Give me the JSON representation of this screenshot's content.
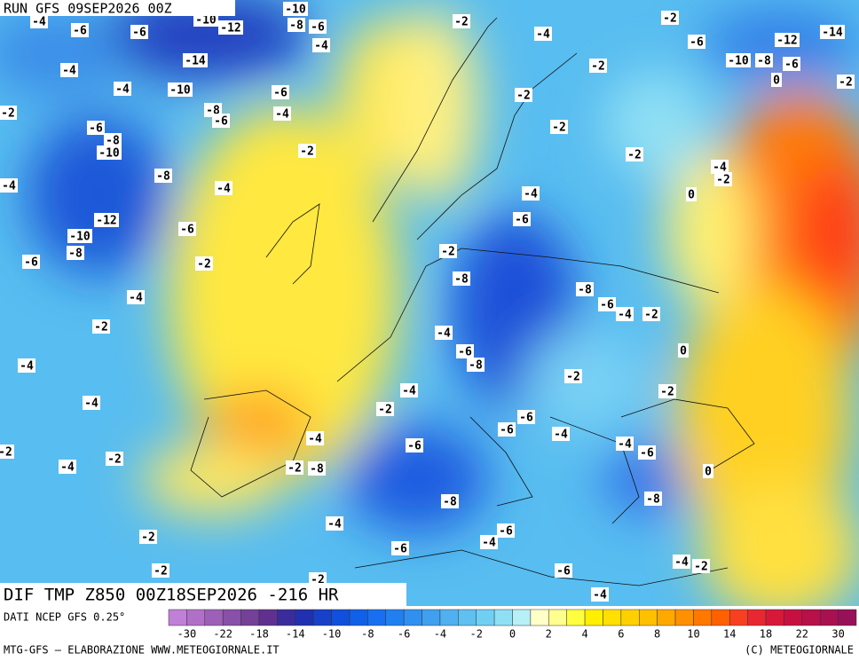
{
  "header": {
    "run": "RUN GFS 09SEP2026 00Z"
  },
  "map": {
    "title": "DIF TMP Z850 00Z18SEP2026 -216 HR",
    "contour_labels": [
      -4,
      -6,
      -6,
      -10,
      -12,
      -10,
      -8,
      -6,
      -4,
      -2,
      -2,
      -4,
      -6,
      -12,
      -14,
      -4,
      -14,
      -2,
      -10,
      -8,
      -6,
      0,
      -2,
      -4,
      -10,
      -6,
      -2,
      -8,
      -6,
      -4,
      -2,
      -6,
      -8,
      -10,
      -2,
      -2,
      -2,
      -4,
      -2,
      -8,
      -4,
      -4,
      0,
      -4,
      -6,
      -12,
      -6,
      -10,
      -8,
      -6,
      -2,
      -2,
      -8,
      -8,
      -4,
      -6,
      -4,
      -2,
      -2,
      -4,
      -6,
      -8,
      0,
      -4,
      -2,
      -4,
      -2,
      -4,
      -2,
      -6,
      -6,
      -4,
      -4,
      -6,
      -4,
      -6,
      -2,
      -4,
      -2,
      0,
      -2,
      -8,
      -8,
      -8,
      -4,
      -6,
      -4,
      -6,
      -2,
      -4,
      -2,
      -2,
      -6,
      -4,
      -2
    ]
  },
  "legend": {
    "source": "DATI NCEP GFS 0.25°",
    "ticks": [
      -30,
      -22,
      -18,
      -14,
      -10,
      -8,
      -6,
      -4,
      -2,
      0,
      2,
      4,
      6,
      8,
      10,
      14,
      18,
      22,
      30
    ],
    "colors": [
      "#c080d8",
      "#b070c8",
      "#9c60b8",
      "#8850a8",
      "#744098",
      "#603090",
      "#3a2c9c",
      "#2030b0",
      "#1840c8",
      "#1050dc",
      "#1060e8",
      "#1870f0",
      "#2080f0",
      "#3090f0",
      "#40a0f0",
      "#50b0f0",
      "#60c0f0",
      "#70d0f4",
      "#90e0f4",
      "#b8f0f8",
      "#ffffc8",
      "#ffff90",
      "#ffff40",
      "#fff000",
      "#ffe000",
      "#ffd000",
      "#ffc000",
      "#ffa800",
      "#ff9000",
      "#ff7800",
      "#ff6000",
      "#f84020",
      "#e82830",
      "#d81838",
      "#c81040",
      "#b81048",
      "#a81050",
      "#981058"
    ]
  },
  "footer": {
    "left": "MTG-GFS – ELABORAZIONE WWW.METEOGIORNALE.IT",
    "right": "(C) METEOGIORNALE"
  }
}
